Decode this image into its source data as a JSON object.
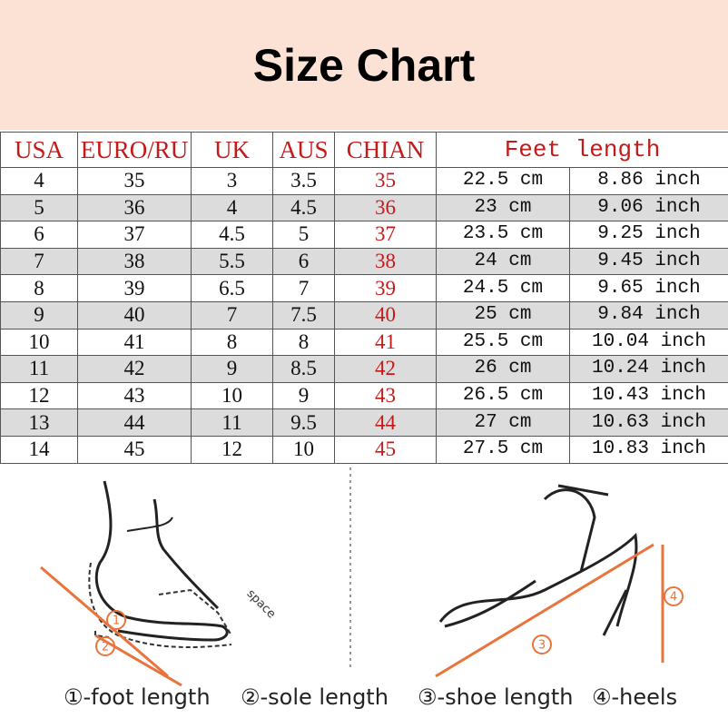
{
  "header": {
    "title": "Size Chart"
  },
  "table": {
    "columns": [
      "USA",
      "EURO/RU",
      "UK",
      "AUS",
      "CHIAN",
      "Feet length"
    ],
    "rows": [
      [
        "4",
        "35",
        "3",
        "3.5",
        "35",
        "22.5 cm",
        "8.86 inch"
      ],
      [
        "5",
        "36",
        "4",
        "4.5",
        "36",
        "23 cm",
        "9.06 inch"
      ],
      [
        "6",
        "37",
        "4.5",
        "5",
        "37",
        "23.5 cm",
        "9.25 inch"
      ],
      [
        "7",
        "38",
        "5.5",
        "6",
        "38",
        "24 cm",
        "9.45 inch"
      ],
      [
        "8",
        "39",
        "6.5",
        "7",
        "39",
        "24.5 cm",
        "9.65 inch"
      ],
      [
        "9",
        "40",
        "7",
        "7.5",
        "40",
        "25 cm",
        "9.84 inch"
      ],
      [
        "10",
        "41",
        "8",
        "8",
        "41",
        "25.5 cm",
        "10.04 inch"
      ],
      [
        "11",
        "42",
        "9",
        "8.5",
        "42",
        "26 cm",
        "10.24 inch"
      ],
      [
        "12",
        "43",
        "10",
        "9",
        "43",
        "26.5 cm",
        "10.43 inch"
      ],
      [
        "13",
        "44",
        "11",
        "9.5",
        "44",
        "27 cm",
        "10.63 inch"
      ],
      [
        "14",
        "45",
        "12",
        "10",
        "45",
        "27.5 cm",
        "10.83 inch"
      ]
    ]
  },
  "diagram": {
    "markers": [
      "1",
      "2",
      "3",
      "4"
    ],
    "space_label": "space",
    "legend": [
      "①-foot length",
      "②-sole length",
      "③-shoe length",
      "④-heels"
    ]
  }
}
